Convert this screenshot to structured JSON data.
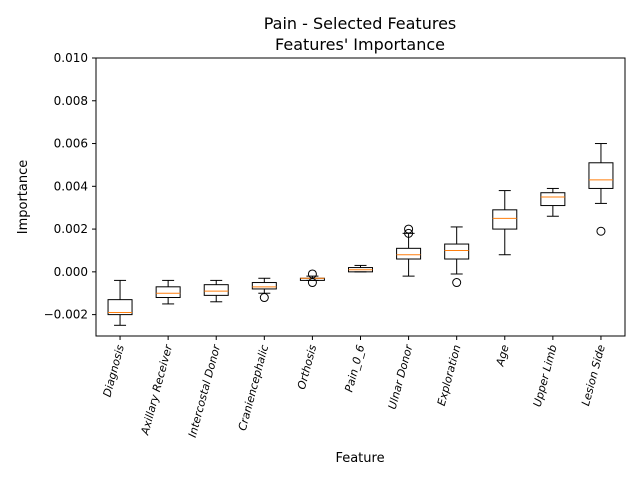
{
  "chart_data": {
    "type": "box",
    "title": "Pain - Selected Features",
    "subtitle": "Features' Importance",
    "xlabel": "Feature",
    "ylabel": "Importance",
    "ylim": [
      -0.003,
      0.01
    ],
    "yticks": [
      -0.002,
      0.0,
      0.002,
      0.004,
      0.006,
      0.008,
      0.01
    ],
    "ytick_labels": [
      "−0.002",
      "0.000",
      "0.002",
      "0.004",
      "0.006",
      "0.008",
      "0.010"
    ],
    "grid": false,
    "legend": "none",
    "median_color": "#ff7f0e",
    "box_color": "#000000",
    "categories": [
      "Diagnosis",
      "Axillary Receiver",
      "Intercostal Donor",
      "Craniencephalic",
      "Orthosis",
      "Pain_0_6",
      "Ulnar Donor",
      "Exploration",
      "Age",
      "Upper Limb",
      "Lesion Side"
    ],
    "boxes": [
      {
        "whislo": -0.0025,
        "q1": -0.002,
        "med": -0.0019,
        "q3": -0.0013,
        "whishi": -0.0004,
        "fliers": []
      },
      {
        "whislo": -0.0015,
        "q1": -0.0012,
        "med": -0.001,
        "q3": -0.0007,
        "whishi": -0.0004,
        "fliers": []
      },
      {
        "whislo": -0.0014,
        "q1": -0.0011,
        "med": -0.0009,
        "q3": -0.0006,
        "whishi": -0.0004,
        "fliers": []
      },
      {
        "whislo": -0.001,
        "q1": -0.0008,
        "med": -0.0007,
        "q3": -0.0005,
        "whishi": -0.0003,
        "fliers": [
          -0.0012
        ]
      },
      {
        "whislo": -0.0004,
        "q1": -0.0004,
        "med": -0.0003,
        "q3": -0.0003,
        "whishi": -0.0002,
        "fliers": [
          -0.0005,
          -0.0001
        ]
      },
      {
        "whislo": 0.0,
        "q1": 0.0,
        "med": 0.0001,
        "q3": 0.0002,
        "whishi": 0.0003,
        "fliers": []
      },
      {
        "whislo": -0.0002,
        "q1": 0.0006,
        "med": 0.0008,
        "q3": 0.0011,
        "whishi": 0.0018,
        "fliers": [
          0.0018,
          0.002
        ]
      },
      {
        "whislo": -0.0001,
        "q1": 0.0006,
        "med": 0.001,
        "q3": 0.0013,
        "whishi": 0.0021,
        "fliers": [
          -0.0005
        ]
      },
      {
        "whislo": 0.0008,
        "q1": 0.002,
        "med": 0.0025,
        "q3": 0.0029,
        "whishi": 0.0038,
        "fliers": []
      },
      {
        "whislo": 0.0026,
        "q1": 0.0031,
        "med": 0.0035,
        "q3": 0.0037,
        "whishi": 0.0039,
        "fliers": []
      },
      {
        "whislo": 0.0032,
        "q1": 0.0039,
        "med": 0.0043,
        "q3": 0.0051,
        "whishi": 0.006,
        "fliers": [
          0.0019
        ]
      }
    ]
  }
}
